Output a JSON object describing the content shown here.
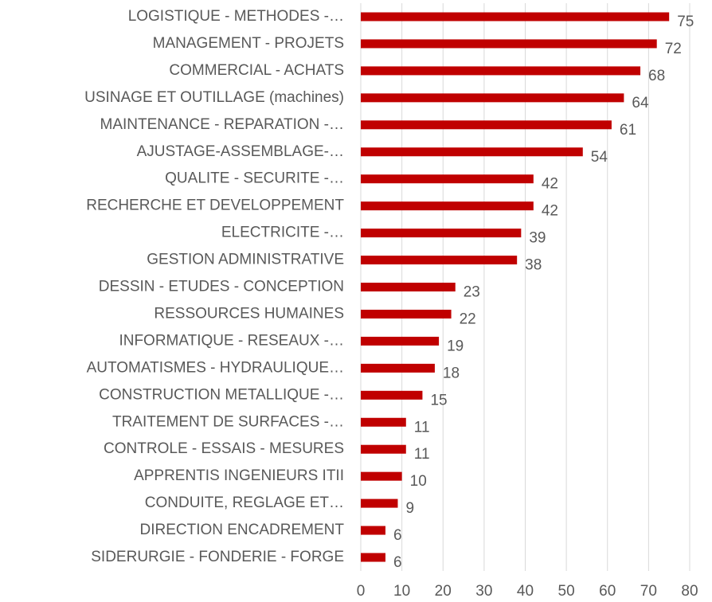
{
  "chart_data": {
    "type": "bar",
    "orientation": "horizontal",
    "categories": [
      "LOGISTIQUE - METHODES -…",
      "MANAGEMENT - PROJETS",
      "COMMERCIAL - ACHATS",
      "USINAGE ET OUTILLAGE (machines)",
      "MAINTENANCE - REPARATION -…",
      "AJUSTAGE-ASSEMBLAGE-…",
      "QUALITE - SECURITE -…",
      "RECHERCHE ET DEVELOPPEMENT",
      "ELECTRICITE -…",
      "GESTION ADMINISTRATIVE",
      "DESSIN - ETUDES - CONCEPTION",
      "RESSOURCES HUMAINES",
      "INFORMATIQUE - RESEAUX -…",
      "AUTOMATISMES - HYDRAULIQUE…",
      "CONSTRUCTION METALLIQUE -…",
      "TRAITEMENT DE SURFACES -…",
      "CONTROLE - ESSAIS - MESURES",
      "APPRENTIS INGENIEURS ITII",
      "CONDUITE, REGLAGE ET…",
      "DIRECTION ENCADREMENT",
      "SIDERURGIE - FONDERIE - FORGE"
    ],
    "values": [
      75,
      72,
      68,
      64,
      61,
      54,
      42,
      42,
      39,
      38,
      23,
      22,
      19,
      18,
      15,
      11,
      11,
      10,
      9,
      6,
      6
    ],
    "color": "#c00000",
    "xlim": [
      0,
      80
    ],
    "xticks": [
      0,
      10,
      20,
      30,
      40,
      50,
      60,
      70,
      80
    ],
    "grid": true
  }
}
